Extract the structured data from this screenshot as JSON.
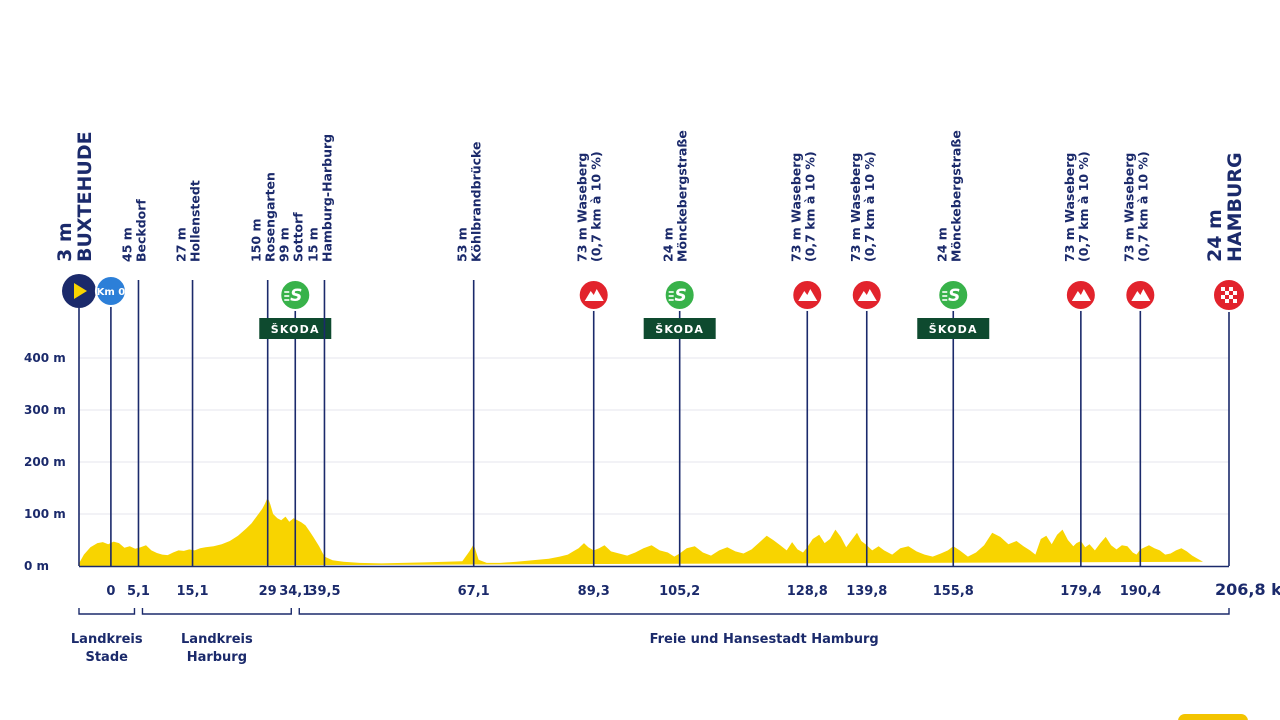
{
  "colors": {
    "navy": "#1b2a6b",
    "profile": "#f8d400",
    "grid": "#e6e6ee",
    "start_marker": "#1b2a6b",
    "start_arrow": "#f8d400",
    "km0_marker": "#2c7fd8",
    "climb_marker": "#e2232c",
    "sprint_marker": "#38b24a",
    "skoda_bg": "#0e4a2f",
    "finish_marker": "#e2232c"
  },
  "chart_data": {
    "type": "area",
    "title": "",
    "xlabel": "",
    "ylabel": "",
    "xlim": [
      -5.9,
      206.8
    ],
    "ylim": [
      0,
      400
    ],
    "grid": true,
    "y_ticks": [
      {
        "value": 0,
        "label": "0 m"
      },
      {
        "value": 100,
        "label": "100 m"
      },
      {
        "value": 200,
        "label": "200 m"
      },
      {
        "value": 300,
        "label": "300 m"
      },
      {
        "value": 400,
        "label": "400 m"
      }
    ],
    "x_tick_labels": [
      {
        "km": 0,
        "label": "0"
      },
      {
        "km": 5.1,
        "label": "5,1"
      },
      {
        "km": 15.1,
        "label": "15,1"
      },
      {
        "km": 29,
        "label": "29"
      },
      {
        "km": 34.1,
        "label": "34,1"
      },
      {
        "km": 39.5,
        "label": "39,5"
      },
      {
        "km": 67.1,
        "label": "67,1"
      },
      {
        "km": 89.3,
        "label": "89,3"
      },
      {
        "km": 105.2,
        "label": "105,2"
      },
      {
        "km": 128.8,
        "label": "128,8"
      },
      {
        "km": 139.8,
        "label": "139,8"
      },
      {
        "km": 155.8,
        "label": "155,8"
      },
      {
        "km": 179.4,
        "label": "179,4"
      },
      {
        "km": 190.4,
        "label": "190,4"
      },
      {
        "km": 206.8,
        "label": "206,8 km"
      }
    ],
    "elevation_profile": {
      "x_km": [
        -5.9,
        -5,
        -3.8,
        -2.5,
        -1.5,
        -0.5,
        0.5,
        1.5,
        2.5,
        3.5,
        4.5,
        5.5,
        6.5,
        7.5,
        8.5,
        9.5,
        10.5,
        11.5,
        12.5,
        13.5,
        14.5,
        15.5,
        16.5,
        17.5,
        19,
        20.5,
        22,
        23.5,
        25,
        26,
        27,
        28,
        28.5,
        29,
        29.5,
        30,
        30.8,
        31.5,
        32.3,
        33,
        33.8,
        34.5,
        35.2,
        36,
        36.8,
        37.5,
        38.5,
        39.5,
        41,
        43,
        46,
        50,
        54,
        58,
        62,
        65,
        66.3,
        67.1,
        68,
        69.5,
        72,
        75,
        78,
        81,
        83,
        84.5,
        85.5,
        86.5,
        87.5,
        88.3,
        89.3,
        90.3,
        91.3,
        92.5,
        94,
        95.5,
        97,
        98.5,
        100,
        101.5,
        103,
        104.2,
        105.2,
        106.5,
        108,
        109.5,
        111,
        112.5,
        114,
        115.5,
        117,
        118.5,
        120,
        121.3,
        122.5,
        123.8,
        125,
        126,
        127,
        128,
        128.8,
        129.8,
        131,
        132,
        133,
        134,
        135,
        136,
        137,
        138,
        138.8,
        139.8,
        140.8,
        142,
        143,
        144.5,
        146,
        147.5,
        149,
        150.5,
        152,
        153.5,
        154.8,
        155.8,
        157,
        158.5,
        160,
        161.5,
        163,
        164.5,
        166,
        167.5,
        168.8,
        170,
        171,
        172,
        173,
        174,
        175,
        176,
        177,
        178,
        178.6,
        179.4,
        180.2,
        181,
        182,
        183,
        184,
        185,
        186,
        187,
        188,
        189,
        189.7,
        190.4,
        191.2,
        192,
        193,
        194,
        195,
        196,
        197,
        198,
        199,
        200,
        201,
        202,
        203,
        204,
        205,
        206,
        206.8
      ],
      "elevation_m": [
        5,
        22,
        36,
        44,
        46,
        42,
        47,
        44,
        35,
        38,
        33,
        36,
        40,
        30,
        25,
        22,
        21,
        26,
        30,
        29,
        32,
        30,
        34,
        36,
        38,
        42,
        48,
        58,
        72,
        82,
        96,
        110,
        120,
        132,
        118,
        100,
        92,
        88,
        95,
        85,
        92,
        88,
        84,
        78,
        66,
        55,
        38,
        18,
        11,
        8,
        6,
        5,
        6,
        7,
        8,
        9,
        28,
        42,
        12,
        6,
        6,
        8,
        11,
        14,
        18,
        22,
        28,
        34,
        44,
        36,
        30,
        34,
        40,
        28,
        24,
        20,
        26,
        34,
        40,
        30,
        26,
        18,
        24,
        34,
        38,
        26,
        20,
        30,
        36,
        28,
        24,
        32,
        46,
        58,
        50,
        40,
        30,
        46,
        32,
        26,
        36,
        52,
        60,
        44,
        52,
        70,
        56,
        36,
        50,
        64,
        48,
        40,
        30,
        38,
        30,
        22,
        34,
        38,
        28,
        22,
        18,
        24,
        30,
        38,
        30,
        18,
        26,
        40,
        64,
        56,
        42,
        48,
        38,
        30,
        22,
        52,
        58,
        42,
        60,
        70,
        50,
        38,
        44,
        48,
        36,
        42,
        30,
        44,
        56,
        40,
        32,
        40,
        38,
        26,
        22,
        32,
        36,
        40,
        34,
        30,
        22,
        24,
        30,
        34,
        28,
        20,
        14,
        8
      ]
    },
    "locations": [
      {
        "km": -5.9,
        "elevation": "3 m",
        "name": "BUXTEHUDE",
        "type": "start"
      },
      {
        "km": 0,
        "elevation": "",
        "name": "",
        "type": "km0",
        "marker_text": "Km 0"
      },
      {
        "km": 5.1,
        "elevation": "45 m",
        "name": "Beckdorf",
        "type": "place"
      },
      {
        "km": 15.1,
        "elevation": "27 m",
        "name": "Hollenstedt",
        "type": "place"
      },
      {
        "km": 29,
        "elevation": "150 m",
        "name": "Rosengarten",
        "type": "place"
      },
      {
        "km": 34.1,
        "elevation": "99 m",
        "name": "Sottorf",
        "type": "sprint",
        "sponsor": "ŠKODA"
      },
      {
        "km": 39.5,
        "elevation": "15 m",
        "name": "Hamburg-Harburg",
        "type": "place"
      },
      {
        "km": 67.1,
        "elevation": "53 m",
        "name": "Köhlbrandbrücke",
        "type": "place"
      },
      {
        "km": 89.3,
        "elevation": "73 m",
        "name": "Waseberg",
        "detail": "(0,7 km à 10 %)",
        "type": "climb"
      },
      {
        "km": 105.2,
        "elevation": "24 m",
        "name": "Mönckebergstraße",
        "type": "sprint",
        "sponsor": "ŠKODA"
      },
      {
        "km": 128.8,
        "elevation": "73 m",
        "name": "Waseberg",
        "detail": "(0,7 km à 10 %)",
        "type": "climb"
      },
      {
        "km": 139.8,
        "elevation": "73 m",
        "name": "Waseberg",
        "detail": "(0,7 km à 10 %)",
        "type": "climb"
      },
      {
        "km": 155.8,
        "elevation": "24 m",
        "name": "Mönckebergstraße",
        "type": "sprint",
        "sponsor": "ŠKODA"
      },
      {
        "km": 179.4,
        "elevation": "73 m",
        "name": "Waseberg",
        "detail": "(0,7 km à 10 %)",
        "type": "climb"
      },
      {
        "km": 190.4,
        "elevation": "73 m",
        "name": "Waseberg",
        "detail": "(0,7 km à 10 %)",
        "type": "climb"
      },
      {
        "km": 206.8,
        "elevation": "24 m",
        "name": "HAMBURG",
        "type": "finish"
      }
    ],
    "regions": [
      {
        "label": "Landkreis\nStade",
        "from_km": -5.9,
        "to_km": 5.1
      },
      {
        "label": "Landkreis\nHarburg",
        "from_km": 5.1,
        "to_km": 34.1
      },
      {
        "label": "Freie und Hansestadt Hamburg",
        "from_km": 34.1,
        "to_km": 206.8
      }
    ]
  }
}
